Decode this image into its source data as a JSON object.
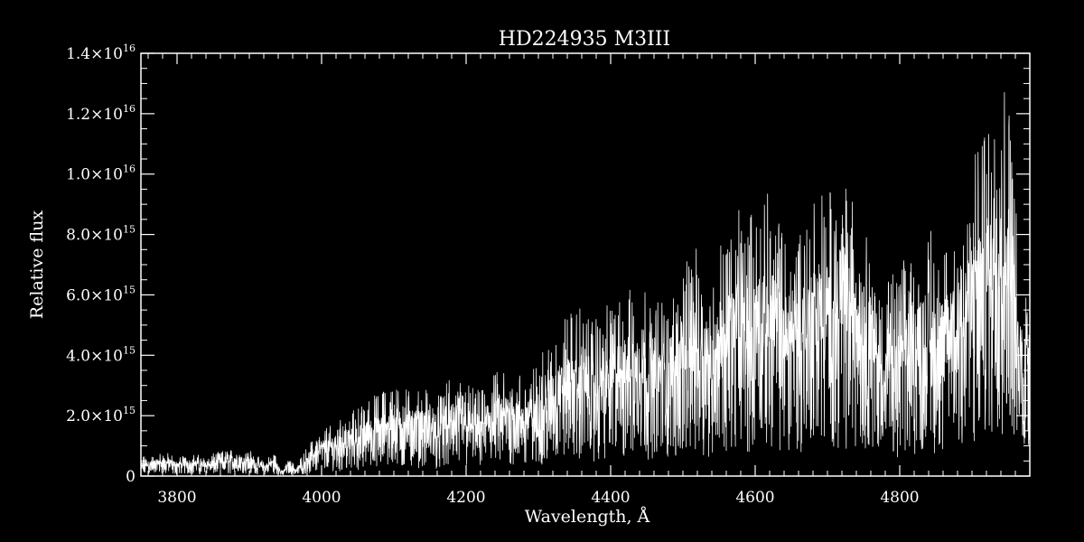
{
  "chart_data": {
    "type": "line",
    "title": "HD224935   M3III",
    "xlabel": "Wavelength, Å",
    "ylabel": "Relative flux",
    "xlim": [
      3750,
      4980
    ],
    "ylim": [
      0,
      1.4e+16
    ],
    "grid": false,
    "legend": "none",
    "x_ticks": [
      {
        "value": 3800,
        "label": "3800"
      },
      {
        "value": 4000,
        "label": "4000"
      },
      {
        "value": 4200,
        "label": "4200"
      },
      {
        "value": 4400,
        "label": "4400"
      },
      {
        "value": 4600,
        "label": "4600"
      },
      {
        "value": 4800,
        "label": "4800"
      }
    ],
    "y_ticks": [
      {
        "value": 0,
        "label": "0",
        "mant": "0",
        "exp": ""
      },
      {
        "value": 2000000000000000.0,
        "label": "2.0×10^15",
        "mant": "2.0×10",
        "exp": "15"
      },
      {
        "value": 4000000000000000.0,
        "label": "4.0×10^15",
        "mant": "4.0×10",
        "exp": "15"
      },
      {
        "value": 6000000000000000.0,
        "label": "6.0×10^15",
        "mant": "6.0×10",
        "exp": "15"
      },
      {
        "value": 8000000000000000.0,
        "label": "8.0×10^15",
        "mant": "8.0×10",
        "exp": "15"
      },
      {
        "value": 1e+16,
        "label": "1.0×10^16",
        "mant": "1.0×10",
        "exp": "16"
      },
      {
        "value": 1.2e+16,
        "label": "1.2×10^16",
        "mant": "1.2×10",
        "exp": "16"
      },
      {
        "value": 1.4e+16,
        "label": "1.4×10^16",
        "mant": "1.4×10",
        "exp": "16"
      }
    ],
    "series": [
      {
        "color": "#ffffff",
        "x": [
          3750,
          3760,
          3780,
          3800,
          3820,
          3840,
          3860,
          3880,
          3900,
          3920,
          3935,
          3945,
          3955,
          3965,
          3980,
          4000,
          4020,
          4040,
          4060,
          4080,
          4100,
          4120,
          4140,
          4160,
          4180,
          4200,
          4220,
          4240,
          4260,
          4280,
          4300,
          4320,
          4340,
          4360,
          4380,
          4400,
          4420,
          4440,
          4460,
          4480,
          4500,
          4520,
          4540,
          4560,
          4580,
          4600,
          4620,
          4640,
          4660,
          4680,
          4700,
          4720,
          4740,
          4760,
          4770,
          4780,
          4800,
          4820,
          4840,
          4860,
          4880,
          4900,
          4920,
          4940,
          4955,
          4965,
          4980
        ],
        "y": [
          400000000000000.0,
          400000000000000.0,
          500000000000000.0,
          400000000000000.0,
          450000000000000.0,
          400000000000000.0,
          500000000000000.0,
          550000000000000.0,
          550000000000000.0,
          300000000000000.0,
          500000000000000.0,
          100000000000000.0,
          350000000000000.0,
          200000000000000.0,
          600000000000000.0,
          1000000000000000.0,
          1100000000000000.0,
          1300000000000000.0,
          1500000000000000.0,
          1700000000000000.0,
          1900000000000000.0,
          1800000000000000.0,
          1800000000000000.0,
          1600000000000000.0,
          2000000000000000.0,
          1900000000000000.0,
          1700000000000000.0,
          2100000000000000.0,
          2200000000000000.0,
          2000000000000000.0,
          2300000000000000.0,
          2900000000000000.0,
          3300000000000000.0,
          3400000000000000.0,
          3200000000000000.0,
          3500000000000000.0,
          3700000000000000.0,
          4000000000000000.0,
          3400000000000000.0,
          3900000000000000.0,
          4300000000000000.0,
          4600000000000000.0,
          4200000000000000.0,
          5000000000000000.0,
          5400000000000000.0,
          5300000000000000.0,
          5800000000000000.0,
          5000000000000000.0,
          5200000000000000.0,
          5600000000000000.0,
          5900000000000000.0,
          6300000000000000.0,
          5600000000000000.0,
          5000000000000000.0,
          3600000000000000.0,
          3900000000000000.0,
          4200000000000000.0,
          4700000000000000.0,
          5000000000000000.0,
          4800000000000000.0,
          5300000000000000.0,
          6200000000000000.0,
          7500000000000000.0,
          8300000000000000.0,
          7600000000000000.0,
          3900000000000000.0,
          4500000000000000.0
        ]
      }
    ]
  }
}
